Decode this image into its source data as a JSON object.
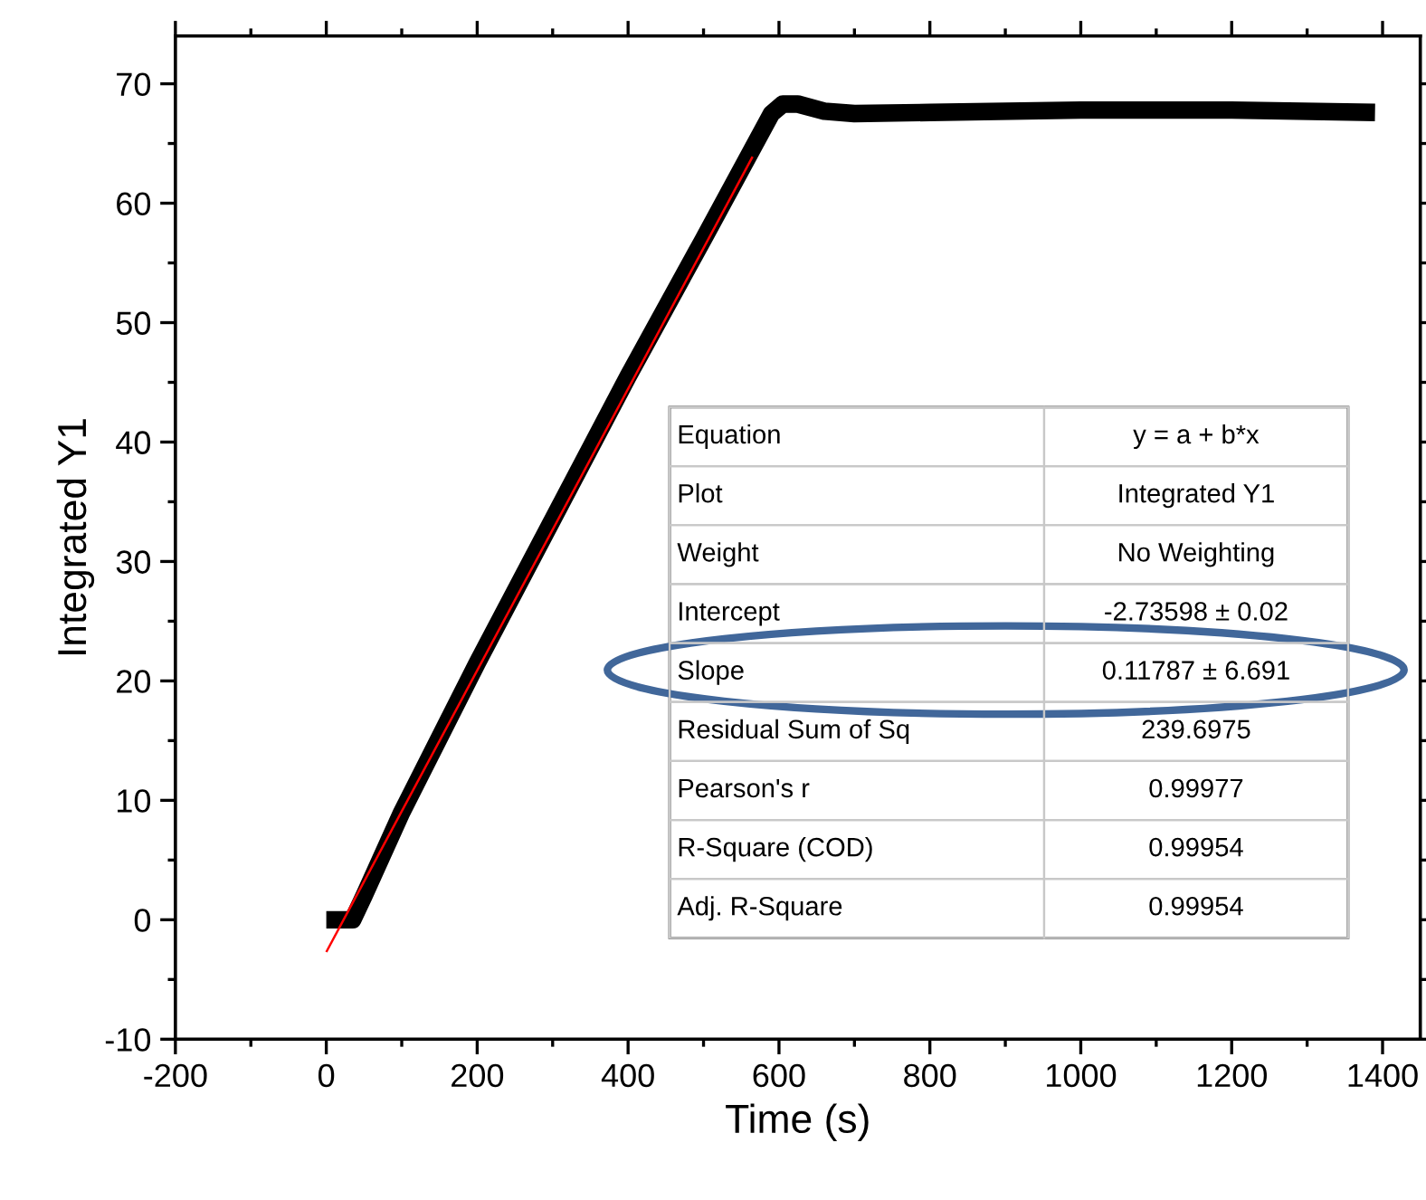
{
  "chart_data": {
    "type": "line",
    "xlabel": "Time (s)",
    "ylabel": "Integrated Y1",
    "xlim": [
      -200,
      1450
    ],
    "ylim": [
      -10,
      74
    ],
    "xticks": [
      -200,
      0,
      200,
      400,
      600,
      800,
      1000,
      1200,
      1400
    ],
    "yticks": [
      -10,
      0,
      10,
      20,
      30,
      40,
      50,
      60,
      70
    ],
    "grid": false,
    "marker": "none",
    "line_style": "solid",
    "series": [
      {
        "color": "#000000",
        "x": [
          0,
          35,
          50,
          100,
          200,
          300,
          400,
          500,
          590,
          605,
          625,
          660,
          700,
          800,
          1000,
          1200,
          1390
        ],
        "values": [
          0,
          0,
          2,
          9,
          21.5,
          33.5,
          45.5,
          57,
          67.5,
          68.3,
          68.3,
          67.7,
          67.5,
          67.6,
          67.8,
          67.8,
          67.6
        ]
      },
      {
        "color": "#ff0000",
        "x": [
          0,
          565
        ],
        "values": [
          -2.7,
          63.9
        ]
      }
    ],
    "annotations": [
      "Equation",
      "y = a + b*x",
      "Plot",
      "Integrated Y1",
      "Weight",
      "No Weighting",
      "Intercept",
      "-2.73598 ± 0.02",
      "Slope",
      "0.11787 ± 6.691",
      "Residual Sum of Sq",
      "239.6975",
      "Pearson's r",
      "0.99977",
      "R-Square (COD)",
      "0.99954",
      "Adj. R-Square",
      "0.99954"
    ]
  }
}
